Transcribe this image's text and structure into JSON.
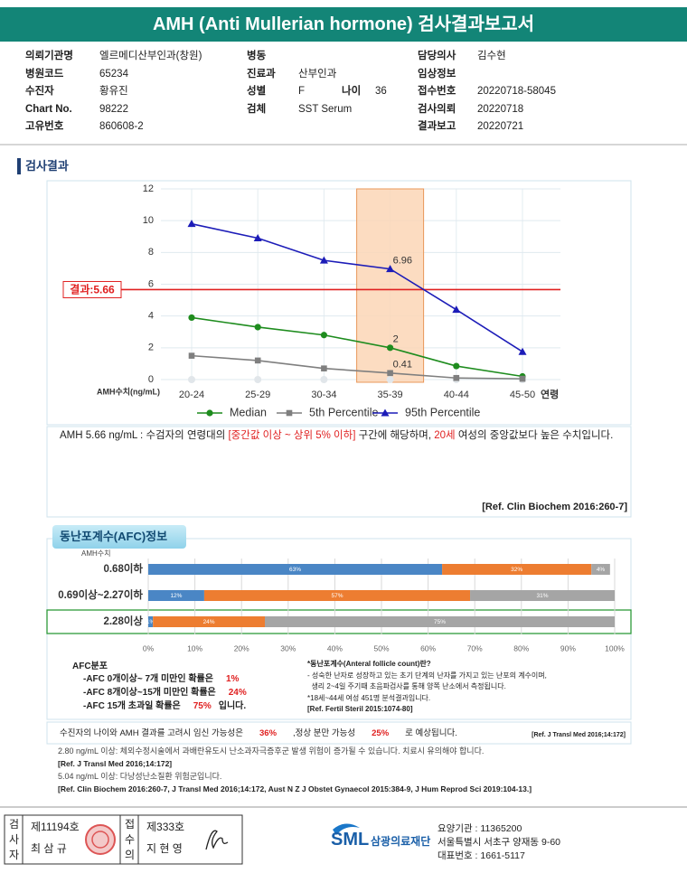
{
  "header": {
    "title": "AMH (Anti Mullerian hormone) 검사결과보고서"
  },
  "info": [
    [
      {
        "label": "의뢰기관명",
        "value": "엘르메디산부인과(창원)"
      },
      {
        "label": "병원코드",
        "value": "65234"
      },
      {
        "label": "수진자",
        "value": "황유진"
      },
      {
        "label": "Chart No.",
        "value": "98222"
      },
      {
        "label": "고유번호",
        "value": "860608-2"
      }
    ],
    [
      {
        "label": "병동"
      },
      {
        "label": "진료과",
        "value": "산부인과"
      },
      {
        "label": "성별",
        "value": "F",
        "extra_label": "나이",
        "extra_value": "36"
      },
      {
        "label": "검체",
        "value": "SST Serum"
      }
    ],
    [
      {
        "label": "담당의사",
        "value": "김수현"
      },
      {
        "label": "임상정보"
      },
      {
        "label": "접수번호",
        "value": "20220718-58045"
      },
      {
        "label": "검사의뢰",
        "value": "20220718"
      },
      {
        "label": "결과보고",
        "value": "20220721"
      }
    ]
  ],
  "section_title": "검사결과",
  "chart_data": [
    {
      "type": "line",
      "categories": [
        "20-24",
        "25-29",
        "30-34",
        "35-39",
        "40-44",
        "45-50"
      ],
      "x_label": "연령",
      "y_label": "AMH수치(ng/mL)",
      "ylim": [
        0,
        12
      ],
      "yticks": [
        0,
        2,
        4,
        6,
        8,
        10,
        12
      ],
      "grid": true,
      "highlight_index": 3,
      "reference_line": {
        "value": 5.66,
        "label": "결과:5.66",
        "color": "#e02020"
      },
      "series": [
        {
          "name": "Median",
          "color": "#1e8c1e",
          "marker": "circle",
          "values": [
            3.9,
            3.3,
            2.8,
            2,
            0.85,
            0.2
          ]
        },
        {
          "name": "5th Percentile",
          "color": "#7f7f7f",
          "marker": "square",
          "values": [
            1.5,
            1.2,
            0.7,
            0.41,
            0.1,
            0.05
          ]
        },
        {
          "name": "95th Percentile",
          "color": "#1c1cb8",
          "marker": "triangle",
          "values": [
            9.8,
            8.9,
            7.5,
            6.96,
            4.4,
            1.75
          ]
        }
      ]
    },
    {
      "type": "stacked_bar",
      "orientation": "horizontal",
      "category_axis_label": "AMH수치",
      "categories": [
        "0.68이하",
        "0.69이상~2.27이하",
        "2.28이상"
      ],
      "xlim": [
        0,
        100
      ],
      "xticks": [
        {
          "value": 0,
          "label": "0%"
        },
        {
          "value": 10,
          "label": "10%"
        },
        {
          "value": 20,
          "label": "20%"
        },
        {
          "value": 30,
          "label": "30%"
        },
        {
          "value": 40,
          "label": "40%"
        },
        {
          "value": 50,
          "label": "50%"
        },
        {
          "value": 60,
          "label": "60%"
        },
        {
          "value": 70,
          "label": "70%"
        },
        {
          "value": 80,
          "label": "80%"
        },
        {
          "value": 90,
          "label": "90%"
        },
        {
          "value": 100,
          "label": "100%"
        }
      ],
      "highlight_index": 2,
      "series": [
        {
          "color": "#4a86c5",
          "values": [
            63,
            12,
            1
          ],
          "value_labels": [
            "63%",
            "12%",
            "1%"
          ]
        },
        {
          "color": "#ed7d31",
          "values": [
            32,
            57,
            24
          ],
          "value_labels": [
            "32%",
            "57%",
            "24%"
          ]
        },
        {
          "color": "#a5a5a5",
          "values": [
            4,
            31,
            75
          ],
          "value_labels": [
            "4%",
            "31%",
            "75%"
          ]
        }
      ]
    }
  ],
  "interpretation": {
    "parts": [
      {
        "text": "AMH  5.66 ng/mL : 수검자의 연령대의 "
      },
      {
        "text": "[중간값 이상 ~ 상위 5% 이하]",
        "emphasis": true
      },
      {
        "text": " 구간에 해당하며, "
      },
      {
        "text": "20세",
        "emphasis": true
      },
      {
        "text": " 여성의 중앙값보다 높은 수치입니다."
      }
    ],
    "ref": "[Ref. Clin Biochem 2016:260-7]"
  },
  "afc": {
    "title": "동난포계수(AFC)정보"
  },
  "afc_distribution": {
    "title": "AFC분포",
    "rows": [
      {
        "text": "-AFC 0개이상~ 7개 미만인 확률은",
        "value": "1%"
      },
      {
        "text": "-AFC 8개이상~15개 미만인 확률은",
        "value": "24%"
      },
      {
        "text": "-AFC 15개 초과일 확률은",
        "value": "75%",
        "suffix": "입니다."
      }
    ]
  },
  "afc_note": [
    "*동난포계수(Anteral follicle count)란?",
    "- 성숙한 난자로 성장하고 있는 초기 단계의 난자를 가지고 있는 난포의 계수이며,",
    "  생리 2~4일 주기때 초음파검사를 통해 양쪽 난소에서 측정됩니다.",
    "*18세~44세 여성 451명 분석결과입니다.",
    "[Ref. Fertil Steril 2015:1074-80]"
  ],
  "probability": {
    "parts": [
      {
        "text": "수진자의 나이와 AMH 결과를 고려시 임신 가능성은"
      },
      {
        "text": "36%",
        "emphasis": true
      },
      {
        "text": ",정상 분만 가능성"
      },
      {
        "text": "25%",
        "emphasis": true
      },
      {
        "text": "로 예상됩니다."
      }
    ],
    "ref": "[Ref. J Transl Med 2016;14:172]"
  },
  "notes": [
    {
      "text": "2.80  ng/mL  이상: 체외수정시술에서 과배란유도시 난소과자극증후군 발생 위험이 증가될 수 있습니다. 치료시 유의해야 합니다.",
      "ref": "[Ref. J Transl Med 2016;14:172]"
    },
    {
      "text": "5.04  ng/mL  이상: 다낭성난소질환 위험군입니다.",
      "ref": "[Ref. Clin Biochem 2016:260-7, J Transl Med 2016;14:172, Aust N Z J Obstet Gynaecol 2015:384-9, J Hum Reprod Sci 2019:104-13.]"
    }
  ],
  "footer": {
    "inspector": {
      "role": "검사자",
      "number": "제11194호",
      "name": "최 삼 규"
    },
    "receiver": {
      "role": "접수의",
      "number": "제333호",
      "name": "지 현 영"
    },
    "org": {
      "logo": "SML",
      "name": "삼광의료재단"
    },
    "contact": [
      "요양기관 : 11365200",
      "서울특별시 서초구 양재동 9-60",
      "대표번호 : 1661-5117"
    ]
  }
}
